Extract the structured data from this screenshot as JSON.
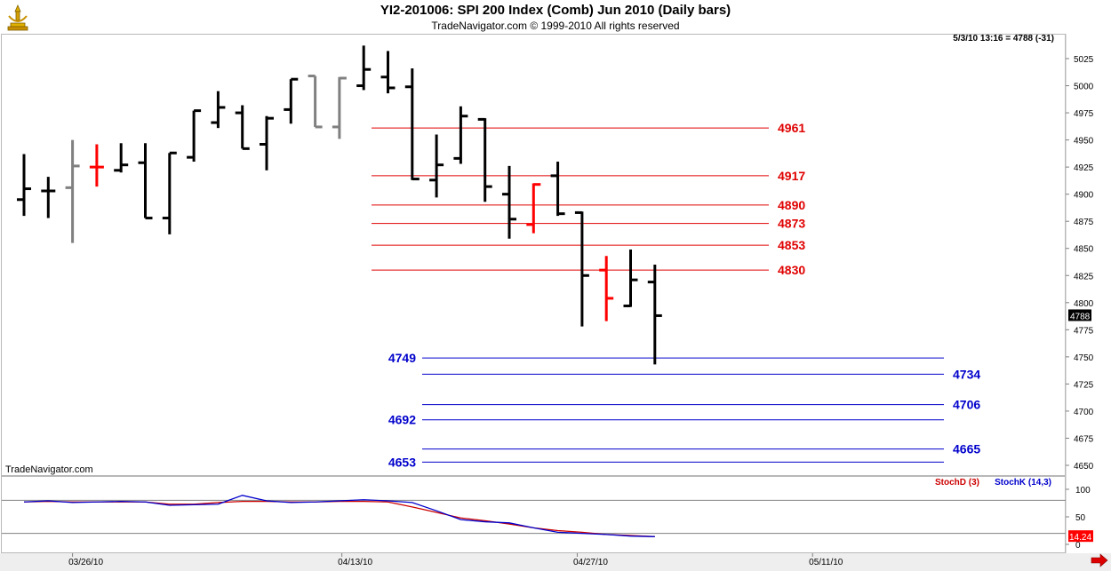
{
  "header": {
    "title": "YI2-201006:  SPI 200 Index (Comb) Jun 2010  (Daily bars)",
    "copyright": "TradeNavigator.com © 1999-2010 All rights reserved",
    "quote": "5/3/10 13:16 = 4788 (-31)",
    "watermark": "TradeNavigator.com",
    "logo_icon": "trophy-icon"
  },
  "colors": {
    "up_bar": "#000000",
    "neutral_bar": "#808080",
    "highlight_bar": "#ff0000",
    "resistance": "#e00000",
    "support": "#0000cc",
    "stoch_d": "#cc0000",
    "stoch_k": "#0000cc"
  },
  "chart_data": [
    {
      "type": "bar",
      "subtype": "ohlc",
      "title": "YI2-201006:  SPI 200 Index (Comb) Jun 2010  (Daily bars)",
      "ylim": [
        4640,
        5040
      ],
      "y_ticks": [
        5025,
        5000,
        4975,
        4950,
        4925,
        4900,
        4875,
        4850,
        4825,
        4800,
        4775,
        4750,
        4725,
        4700,
        4675,
        4650
      ],
      "last_price_label": "4788",
      "bars": [
        {
          "h": 4937,
          "l": 4880,
          "o": 4895,
          "c": 4905,
          "color": "black"
        },
        {
          "h": 4916,
          "l": 4878,
          "o": 4903,
          "c": 4903,
          "color": "black"
        },
        {
          "h": 4950,
          "l": 4855,
          "o": 4906,
          "c": 4926,
          "color": "gray"
        },
        {
          "h": 4946,
          "l": 4907,
          "o": 4925,
          "c": 4925,
          "color": "red"
        },
        {
          "h": 4947,
          "l": 4920,
          "o": 4922,
          "c": 4927,
          "color": "black"
        },
        {
          "h": 4947,
          "l": 4878,
          "o": 4929,
          "c": 4878,
          "color": "black"
        },
        {
          "h": 4938,
          "l": 4863,
          "o": 4878,
          "c": 4938,
          "color": "black"
        },
        {
          "h": 4977,
          "l": 4930,
          "o": 4934,
          "c": 4977,
          "color": "black"
        },
        {
          "h": 4995,
          "l": 4961,
          "o": 4966,
          "c": 4980,
          "color": "black"
        },
        {
          "h": 4982,
          "l": 4942,
          "o": 4975,
          "c": 4942,
          "color": "black"
        },
        {
          "h": 4972,
          "l": 4922,
          "o": 4946,
          "c": 4970,
          "color": "black"
        },
        {
          "h": 5006,
          "l": 4965,
          "o": 4978,
          "c": 5006,
          "color": "black"
        },
        {
          "h": 5009,
          "l": 4962,
          "o": 5009,
          "c": 4962,
          "color": "gray"
        },
        {
          "h": 5008,
          "l": 4951,
          "o": 4962,
          "c": 5007,
          "color": "gray"
        },
        {
          "h": 5037,
          "l": 4996,
          "o": 5000,
          "c": 5015,
          "color": "black"
        },
        {
          "h": 5032,
          "l": 4993,
          "o": 5008,
          "c": 4998,
          "color": "black"
        },
        {
          "h": 5016,
          "l": 4913,
          "o": 4999,
          "c": 4914,
          "color": "black"
        },
        {
          "h": 4955,
          "l": 4897,
          "o": 4913,
          "c": 4927,
          "color": "black"
        },
        {
          "h": 4981,
          "l": 4928,
          "o": 4933,
          "c": 4972,
          "color": "black"
        },
        {
          "h": 4970,
          "l": 4893,
          "o": 4969,
          "c": 4907,
          "color": "black"
        },
        {
          "h": 4926,
          "l": 4859,
          "o": 4900,
          "c": 4877,
          "color": "black"
        },
        {
          "h": 4910,
          "l": 4864,
          "o": 4872,
          "c": 4909,
          "color": "red"
        },
        {
          "h": 4930,
          "l": 4880,
          "o": 4917,
          "c": 4882,
          "color": "black"
        },
        {
          "h": 4884,
          "l": 4778,
          "o": 4883,
          "c": 4825,
          "color": "black"
        },
        {
          "h": 4843,
          "l": 4783,
          "o": 4830,
          "c": 4804,
          "color": "red"
        },
        {
          "h": 4849,
          "l": 4796,
          "o": 4797,
          "c": 4821,
          "color": "black"
        },
        {
          "h": 4835,
          "l": 4743,
          "o": 4819,
          "c": 4788,
          "color": "black"
        }
      ],
      "resistance_levels": [
        4961,
        4917,
        4890,
        4873,
        4853,
        4830
      ],
      "resistance_labels": [
        "4961",
        "4917",
        "4890",
        "4873",
        "4853",
        "4830"
      ],
      "support_levels": [
        4749,
        4734,
        4706,
        4692,
        4665,
        4653
      ],
      "support_labels": [
        "4749",
        "4734",
        "4706",
        "4692",
        "4665",
        "4653"
      ],
      "support_label_side": [
        "left",
        "right",
        "right",
        "left",
        "right",
        "left"
      ],
      "x_tick_labels": [
        "03/26/10",
        "04/13/10",
        "04/27/10",
        "05/11/10"
      ],
      "x_tick_bar_index": [
        2,
        13.1,
        22.8,
        32.5
      ]
    },
    {
      "type": "line",
      "ylim": [
        0,
        100
      ],
      "y_ticks": [
        100,
        50,
        0
      ],
      "reference_lines": [
        80,
        20
      ],
      "last_value_label": "14.24",
      "series": [
        {
          "name": "StochD (3)",
          "color": "#cc0000",
          "values": [
            77,
            78,
            77,
            77,
            77,
            77,
            73,
            73,
            76,
            78,
            78,
            77,
            77,
            78,
            78,
            77,
            68,
            58,
            48,
            43,
            37,
            30,
            25,
            22,
            18,
            16,
            14
          ]
        },
        {
          "name": "StochK (14,3)",
          "color": "#0000cc",
          "values": [
            77,
            79,
            76,
            77,
            78,
            77,
            71,
            72,
            73,
            89,
            79,
            76,
            77,
            79,
            81,
            79,
            76,
            61,
            45,
            41,
            39,
            30,
            22,
            20,
            18,
            15,
            14
          ]
        }
      ]
    }
  ]
}
